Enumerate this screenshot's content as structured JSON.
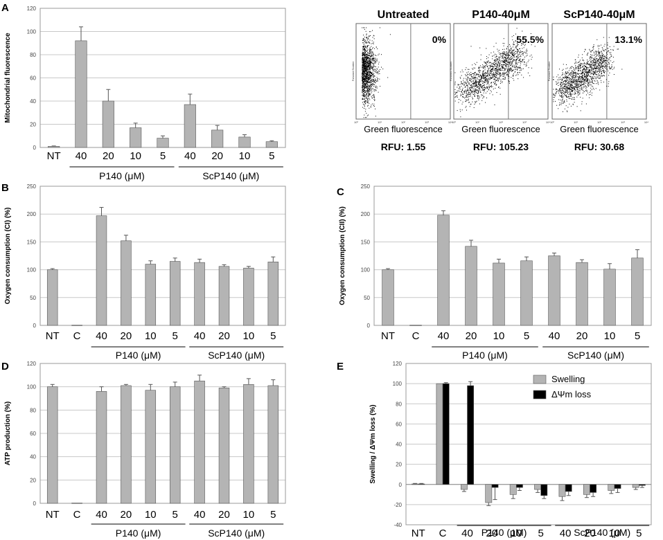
{
  "colors": {
    "gray_bar": "#b4b4b4",
    "black_bar": "#000000",
    "grid": "#c8c8c8",
    "frame": "#999999"
  },
  "chart_data": [
    {
      "id": "A",
      "panel": "A",
      "type": "bar",
      "ylabel": "Mitochondrial fluorescence",
      "ylim": [
        0,
        120
      ],
      "yticks": [
        0,
        20,
        40,
        60,
        80,
        100,
        120
      ],
      "categories": [
        "NT",
        "40",
        "20",
        "10",
        "5",
        "40",
        "20",
        "10",
        "5"
      ],
      "series": [
        {
          "name": "Mitochondrial fluorescence",
          "values": [
            1,
            92,
            40,
            17,
            8,
            37,
            15,
            9,
            5
          ],
          "errors": [
            0.3,
            12,
            10,
            4,
            2,
            9,
            4,
            2,
            0.8
          ]
        }
      ],
      "groups": [
        {
          "label": "P140 (μM)",
          "from": 1,
          "to": 4
        },
        {
          "label": "ScP140 (μM)",
          "from": 5,
          "to": 8
        }
      ]
    },
    {
      "id": "B",
      "panel": "B",
      "type": "bar",
      "ylabel": "Oxygen consumption (CI) (%)",
      "ylim": [
        0,
        250
      ],
      "yticks": [
        0,
        50,
        100,
        150,
        200,
        250
      ],
      "categories": [
        "NT",
        "C",
        "40",
        "20",
        "10",
        "5",
        "40",
        "20",
        "10",
        "5"
      ],
      "series": [
        {
          "name": "Oxygen consumption (CI)",
          "values": [
            100,
            0.5,
            197,
            152,
            110,
            115,
            113,
            106,
            103,
            114
          ],
          "errors": [
            2,
            0,
            15,
            10,
            6,
            6,
            6,
            3,
            3,
            9
          ]
        }
      ],
      "groups": [
        {
          "label": "P140 (μM)",
          "from": 2,
          "to": 5
        },
        {
          "label": "ScP140 (μM)",
          "from": 6,
          "to": 9
        }
      ]
    },
    {
      "id": "C",
      "panel": "C",
      "type": "bar",
      "ylabel": "Oxygen consumption (CII) (%)",
      "ylim": [
        0,
        250
      ],
      "yticks": [
        0,
        50,
        100,
        150,
        200,
        250
      ],
      "categories": [
        "NT",
        "C",
        "40",
        "20",
        "10",
        "5",
        "40",
        "20",
        "10",
        "5"
      ],
      "series": [
        {
          "name": "Oxygen consumption (CII)",
          "values": [
            100,
            0.5,
            198,
            142,
            112,
            116,
            125,
            113,
            101,
            121
          ],
          "errors": [
            2,
            0,
            8,
            11,
            7,
            7,
            5,
            5,
            10,
            15
          ]
        }
      ],
      "groups": [
        {
          "label": "P140 (μM)",
          "from": 2,
          "to": 5
        },
        {
          "label": "ScP140 (μM)",
          "from": 6,
          "to": 9
        }
      ]
    },
    {
      "id": "D",
      "panel": "D",
      "type": "bar",
      "ylabel": "ATP production (%)",
      "ylim": [
        0,
        120
      ],
      "yticks": [
        0,
        20,
        40,
        60,
        80,
        100,
        120
      ],
      "categories": [
        "NT",
        "C",
        "40",
        "20",
        "10",
        "5",
        "40",
        "20",
        "10",
        "5"
      ],
      "series": [
        {
          "name": "ATP production",
          "values": [
            100,
            0.3,
            96,
            101,
            97,
            100,
            105,
            99,
            102,
            101
          ],
          "errors": [
            2,
            0,
            4,
            1,
            5,
            4,
            5,
            1,
            5,
            5
          ]
        }
      ],
      "groups": [
        {
          "label": "P140 (μM)",
          "from": 2,
          "to": 5
        },
        {
          "label": "ScP140 (μM)",
          "from": 6,
          "to": 9
        }
      ]
    },
    {
      "id": "E",
      "panel": "E",
      "type": "bar",
      "ylabel": "Swelling / ΔΨm loss (%)",
      "ylim": [
        -40,
        120
      ],
      "yticks": [
        -40,
        -20,
        0,
        20,
        40,
        60,
        80,
        100,
        120
      ],
      "categories": [
        "NT",
        "C",
        "40",
        "20",
        "10",
        "5",
        "40",
        "20",
        "10",
        "5"
      ],
      "legend": "top-right",
      "series": [
        {
          "name": "Swelling",
          "color": "gray",
          "values": [
            0.5,
            100,
            -5,
            -18,
            -10,
            -5,
            -12,
            -10,
            -6,
            -3
          ],
          "errors": [
            0.5,
            0,
            2,
            3,
            4,
            3,
            4,
            3,
            3,
            2
          ]
        },
        {
          "name": "ΔΨm loss",
          "color": "black",
          "values": [
            0.5,
            100,
            98,
            -3,
            -3,
            -11,
            -7,
            -8,
            -4,
            -1
          ],
          "errors": [
            0.5,
            1,
            4,
            12,
            3,
            3,
            4,
            4,
            4,
            2
          ]
        }
      ],
      "groups": [
        {
          "label": "P140 (μM)",
          "from": 2,
          "to": 5
        },
        {
          "label": "ScP140 (μM)",
          "from": 6,
          "to": 9
        }
      ]
    }
  ],
  "flow": {
    "axis_y": "Forward Scatter",
    "axis_ticks": [
      "10⁰",
      "10¹",
      "10²",
      "10³",
      "10⁴"
    ],
    "plots": [
      {
        "title": "Untreated",
        "percent": "0%",
        "xlabel": "Green fluorescence",
        "rfu": "RFU: 1.55",
        "positive_fraction": 0.0
      },
      {
        "title": "P140-40μM",
        "percent": "55.5%",
        "xlabel": "Green fluorescence",
        "rfu": "RFU: 105.23",
        "positive_fraction": 0.555
      },
      {
        "title": "ScP140-40μM",
        "percent": "13.1%",
        "xlabel": "Green fluorescence",
        "rfu": "RFU: 30.68",
        "positive_fraction": 0.131
      }
    ]
  }
}
